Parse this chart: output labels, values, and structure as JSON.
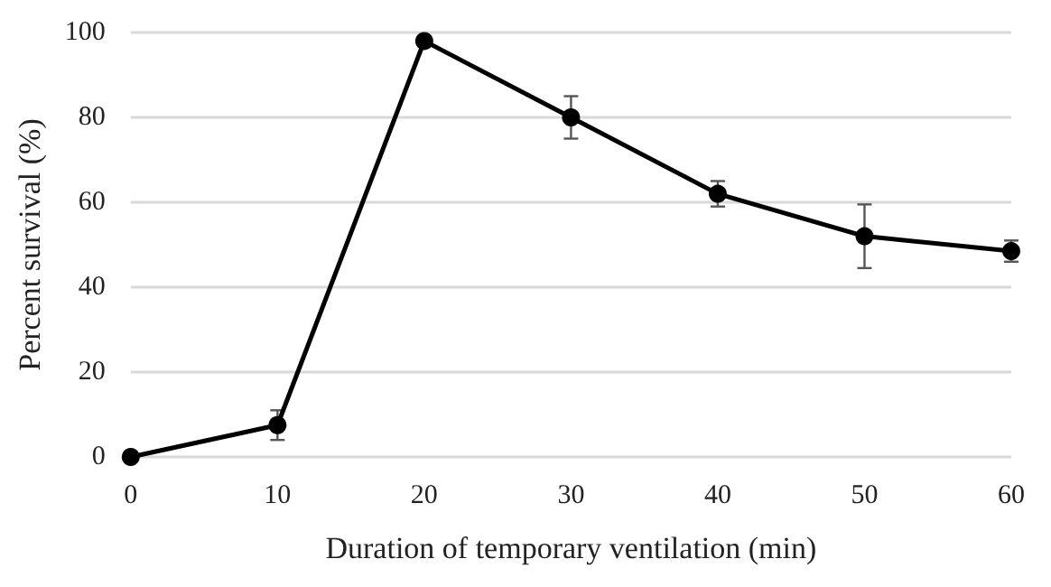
{
  "chart_data": {
    "type": "line",
    "xlabel": "Duration of temporary ventilation (min)",
    "ylabel": "Percent survival (%)",
    "x": [
      0,
      10,
      20,
      30,
      40,
      50,
      60
    ],
    "series": [
      {
        "color": "#000000",
        "values": [
          0,
          7.5,
          98,
          80,
          62,
          52,
          48.5
        ],
        "errors": [
          null,
          3.5,
          1,
          5,
          3,
          7.5,
          2.5
        ]
      }
    ],
    "xlim": [
      0,
      60
    ],
    "xticks": [
      0,
      10,
      20,
      30,
      40,
      50,
      60
    ],
    "ylim": [
      0,
      100
    ],
    "yticks": [
      0,
      20,
      40,
      60,
      80,
      100
    ],
    "grid": "y",
    "marker": "circle",
    "line_style": "solid"
  }
}
